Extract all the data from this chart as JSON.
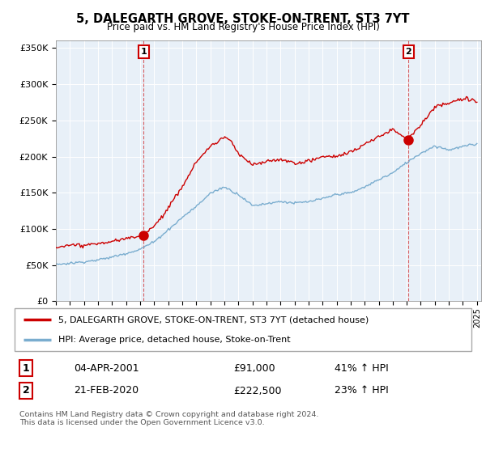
{
  "title": "5, DALEGARTH GROVE, STOKE-ON-TRENT, ST3 7YT",
  "subtitle": "Price paid vs. HM Land Registry's House Price Index (HPI)",
  "legend_line1": "5, DALEGARTH GROVE, STOKE-ON-TRENT, ST3 7YT (detached house)",
  "legend_line2": "HPI: Average price, detached house, Stoke-on-Trent",
  "annotation1_label": "1",
  "annotation1_date": "04-APR-2001",
  "annotation1_price": "£91,000",
  "annotation1_hpi": "41% ↑ HPI",
  "annotation2_label": "2",
  "annotation2_date": "21-FEB-2020",
  "annotation2_price": "£222,500",
  "annotation2_hpi": "23% ↑ HPI",
  "footer": "Contains HM Land Registry data © Crown copyright and database right 2024.\nThis data is licensed under the Open Government Licence v3.0.",
  "red_color": "#cc0000",
  "blue_color": "#7aadcf",
  "plot_bg_color": "#e8f0f8",
  "annotation_box_color": "#cc0000",
  "ylim": [
    0,
    360000
  ],
  "yticks": [
    0,
    50000,
    100000,
    150000,
    200000,
    250000,
    300000,
    350000
  ],
  "start_year": 1995,
  "end_year": 2025,
  "sale1_year": 2001.25,
  "sale1_price": 91000,
  "sale2_year": 2020.13,
  "sale2_price": 222500
}
